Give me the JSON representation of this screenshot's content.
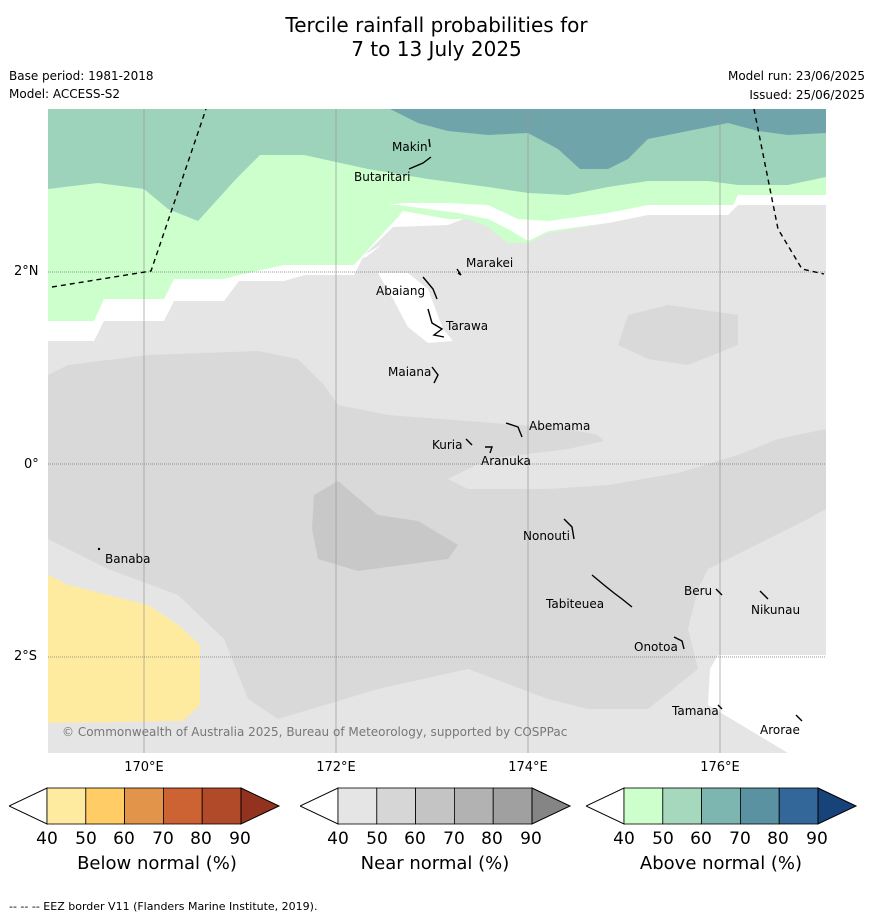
{
  "title": {
    "line1": "Tercile rainfall probabilities for",
    "line2": "7 to 13 July 2025"
  },
  "meta": {
    "base_period": "Base period: 1981-2018",
    "model": "Model: ACCESS-S2",
    "model_run": "Model run: 23/06/2025",
    "issued": "Issued: 25/06/2025"
  },
  "map": {
    "latitude_labels": [
      "2°N",
      "0°",
      "2°S"
    ],
    "longitude_labels": [
      "170°E",
      "172°E",
      "174°E",
      "176°E"
    ],
    "places": [
      "Makin",
      "Butaritari",
      "Marakei",
      "Abaiang",
      "Tarawa",
      "Maiana",
      "Abemama",
      "Kuria",
      "Aranuka",
      "Nonouti",
      "Banaba",
      "Tabiteuea",
      "Beru",
      "Nikunau",
      "Onotoa",
      "Tamana",
      "Arorae"
    ],
    "copyright": "© Commonwealth of Australia 2025, Bureau of Meteorology, supported by COSPPac",
    "colors": {
      "above_40": "#ccffcc",
      "above_50": "#9dd3bb",
      "above_60": "#6fa5aa",
      "near_40": "#e5e5e5",
      "near_50": "#d9d9d9",
      "near_60": "#c8c8c8",
      "below_40": "#ffeb9f"
    }
  },
  "colorbars": [
    {
      "label": "Below normal (%)",
      "ticks": [
        "40",
        "50",
        "60",
        "70",
        "80",
        "90"
      ],
      "colors": [
        "#ffeb9f",
        "#ffcc66",
        "#e3944b",
        "#cd6233",
        "#b14a28",
        "#93321e"
      ]
    },
    {
      "label": "Near normal (%)",
      "ticks": [
        "40",
        "50",
        "60",
        "70",
        "80",
        "90"
      ],
      "colors": [
        "#e5e5e5",
        "#d6d6d6",
        "#c4c4c4",
        "#b2b2b2",
        "#a0a0a0",
        "#858585"
      ]
    },
    {
      "label": "Above normal (%)",
      "ticks": [
        "40",
        "50",
        "60",
        "70",
        "80",
        "90"
      ],
      "colors": [
        "#ccffcc",
        "#a5d8bd",
        "#7db5b0",
        "#5a92a2",
        "#336699",
        "#18427a"
      ]
    }
  ],
  "footer": "--  --  -- EEZ border V11 (Flanders Marine Institute, 2019)."
}
